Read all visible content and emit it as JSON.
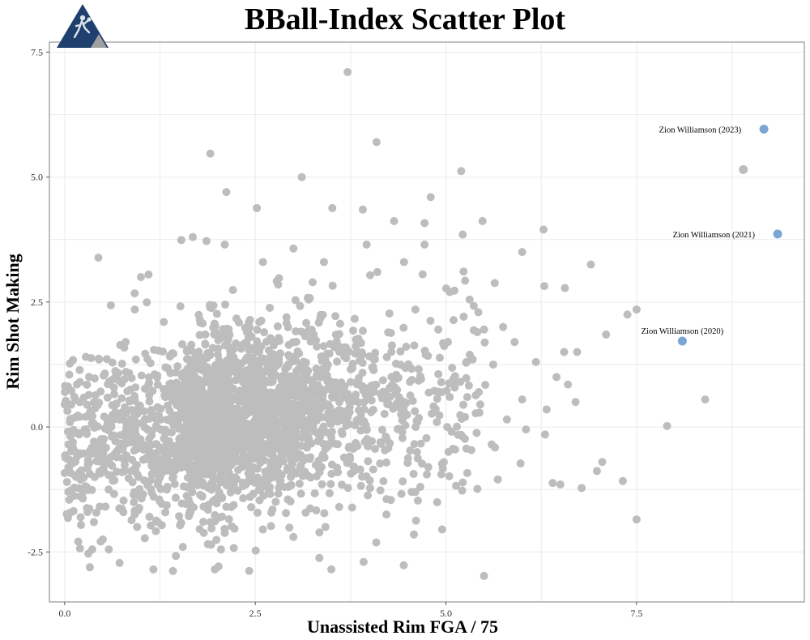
{
  "title": "BBall-Index Scatter Plot",
  "logo_icon": "basketball-player-triangle-logo",
  "colors": {
    "points": "#bdbdbd",
    "highlight": "#7aa6d4",
    "grid": "#ebebeb",
    "panel_border": "#7f7f7f",
    "logo_blue": "#1f3f6e",
    "logo_gray": "#a0a0a0"
  },
  "chart_data": {
    "type": "scatter",
    "title": "BBall-Index Scatter Plot",
    "xlabel": "Unassisted Rim FGA / 75",
    "ylabel": "Rim Shot Making",
    "xlim": [
      -0.2,
      9.7
    ],
    "ylim": [
      -3.5,
      7.7
    ],
    "xticks": [
      0.0,
      2.5,
      5.0,
      7.5
    ],
    "xtick_labels": [
      "0.0",
      "2.5",
      "5.0",
      "7.5"
    ],
    "yticks": [
      -2.5,
      0.0,
      2.5,
      5.0,
      7.5
    ],
    "ytick_labels": [
      "-2.5",
      "0.0",
      "2.5",
      "5.0",
      "7.5"
    ],
    "grid": true,
    "legend": "none",
    "series": [
      {
        "role": "other-players",
        "cluster_center": [
          1.6,
          0.0
        ],
        "approx_count": 2600,
        "points": [
          [
            3.71,
            7.1
          ],
          [
            4.09,
            5.7
          ],
          [
            1.91,
            5.47
          ],
          [
            3.11,
            5.0
          ],
          [
            5.2,
            5.12
          ],
          [
            2.12,
            4.7
          ],
          [
            2.52,
            4.38
          ],
          [
            3.51,
            4.38
          ],
          [
            3.91,
            4.35
          ],
          [
            4.8,
            4.6
          ],
          [
            1.68,
            3.8
          ],
          [
            1.53,
            3.74
          ],
          [
            1.86,
            3.72
          ],
          [
            3.0,
            3.57
          ],
          [
            4.32,
            4.12
          ],
          [
            4.72,
            4.08
          ],
          [
            5.48,
            4.12
          ],
          [
            5.22,
            3.85
          ],
          [
            4.72,
            3.65
          ],
          [
            3.96,
            3.65
          ],
          [
            2.1,
            3.65
          ],
          [
            6.28,
            3.95
          ],
          [
            6.0,
            3.5
          ],
          [
            6.9,
            3.25
          ],
          [
            6.29,
            2.82
          ],
          [
            6.56,
            2.78
          ],
          [
            5.64,
            2.88
          ],
          [
            5.31,
            2.55
          ],
          [
            7.5,
            2.35
          ],
          [
            7.38,
            2.25
          ],
          [
            7.1,
            1.85
          ],
          [
            6.72,
            1.5
          ],
          [
            5.5,
            1.95
          ],
          [
            5.75,
            2.0
          ],
          [
            5.9,
            1.7
          ],
          [
            6.18,
            1.3
          ],
          [
            6.55,
            1.5
          ],
          [
            6.45,
            1.0
          ],
          [
            6.6,
            0.85
          ],
          [
            6.7,
            0.5
          ],
          [
            6.0,
            0.55
          ],
          [
            6.32,
            0.35
          ],
          [
            5.8,
            0.15
          ],
          [
            6.05,
            -0.05
          ],
          [
            6.3,
            -0.15
          ],
          [
            7.9,
            0.02
          ],
          [
            8.4,
            0.55
          ],
          [
            7.05,
            -0.7
          ],
          [
            6.98,
            -0.88
          ],
          [
            7.32,
            -1.08
          ],
          [
            6.4,
            -1.12
          ],
          [
            6.5,
            -1.15
          ],
          [
            6.78,
            -1.22
          ],
          [
            5.68,
            -1.05
          ],
          [
            5.28,
            -0.92
          ],
          [
            4.96,
            -0.83
          ],
          [
            7.5,
            -1.85
          ],
          [
            5.5,
            -2.98
          ],
          [
            3.92,
            -2.7
          ],
          [
            2.42,
            -2.88
          ],
          [
            1.42,
            -2.88
          ],
          [
            0.72,
            -2.72
          ],
          [
            3.34,
            -2.62
          ],
          [
            1.0,
            3.0
          ],
          [
            1.1,
            3.05
          ],
          [
            0.92,
            2.35
          ],
          [
            0.0,
            0.45
          ],
          [
            0.0,
            -0.92
          ],
          [
            0.05,
            -0.35
          ],
          [
            0.8,
            1.7
          ],
          [
            1.3,
            2.1
          ],
          [
            2.6,
            3.3
          ],
          [
            2.8,
            2.85
          ],
          [
            3.4,
            3.3
          ],
          [
            3.2,
            2.55
          ],
          [
            4.1,
            3.1
          ],
          [
            4.45,
            3.3
          ],
          [
            5.05,
            2.7
          ],
          [
            4.9,
            1.95
          ],
          [
            4.6,
            2.35
          ],
          [
            5.35,
            1.35
          ],
          [
            5.62,
            1.25
          ],
          [
            5.05,
            0.6
          ],
          [
            5.25,
            0.2
          ],
          [
            5.45,
            0.45
          ],
          [
            5.6,
            -0.35
          ],
          [
            5.12,
            -0.45
          ],
          [
            4.75,
            -0.95
          ],
          [
            4.55,
            -1.3
          ],
          [
            4.95,
            -2.05
          ],
          [
            4.58,
            -2.15
          ],
          [
            4.22,
            -1.75
          ],
          [
            3.6,
            -1.6
          ],
          [
            3.42,
            -2.0
          ],
          [
            3.0,
            -2.2
          ],
          [
            2.6,
            -2.05
          ],
          [
            2.05,
            -2.45
          ],
          [
            1.55,
            -2.4
          ],
          [
            0.95,
            -2.0
          ],
          [
            0.5,
            -2.25
          ],
          [
            0.3,
            -1.7
          ],
          [
            0.15,
            -1.0
          ],
          [
            0.2,
            0.9
          ],
          [
            0.45,
            1.35
          ]
        ]
      },
      {
        "role": "highlighted",
        "points": [
          {
            "x": 9.17,
            "y": 5.96,
            "label": "Zion Williamson (2023)"
          },
          {
            "x": 9.35,
            "y": 3.86,
            "label": "Zion Williamson (2021)"
          },
          {
            "x": 8.1,
            "y": 1.72,
            "label": "Zion Williamson (2020)"
          },
          {
            "x": 8.9,
            "y": 5.15,
            "label": ""
          }
        ]
      }
    ]
  }
}
